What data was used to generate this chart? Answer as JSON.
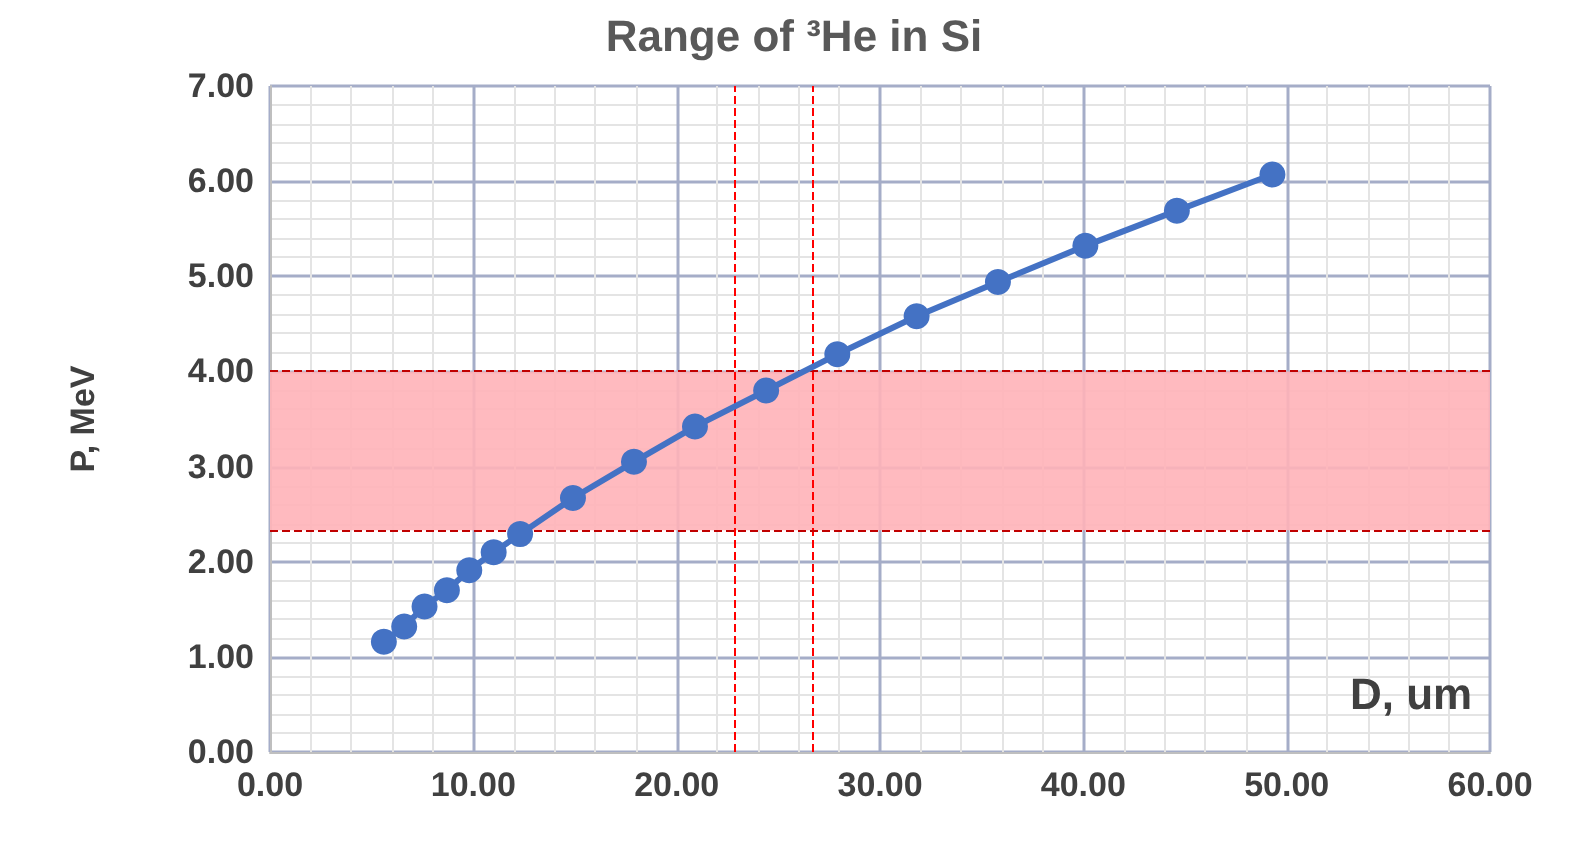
{
  "chart_data": {
    "type": "line",
    "title": "Range of ³He in Si",
    "xlabel": "D, um",
    "ylabel": "P, MeV",
    "x": [
      5.6,
      6.6,
      7.6,
      8.7,
      9.8,
      11.0,
      12.3,
      14.9,
      17.9,
      20.9,
      24.4,
      27.9,
      31.8,
      35.8,
      40.1,
      44.6,
      49.3
    ],
    "series": [
      {
        "color": "#4472c4",
        "values": [
          1.16,
          1.32,
          1.53,
          1.7,
          1.91,
          2.1,
          2.29,
          2.67,
          3.05,
          3.42,
          3.8,
          4.18,
          4.58,
          4.94,
          5.32,
          5.69,
          6.07
        ]
      }
    ],
    "xlim": [
      0,
      60
    ],
    "xticks": [
      {
        "value": 0,
        "label": "0.00"
      },
      {
        "value": 10,
        "label": "10.00"
      },
      {
        "value": 20,
        "label": "20.00"
      },
      {
        "value": 30,
        "label": "30.00"
      },
      {
        "value": 40,
        "label": "40.00"
      },
      {
        "value": 50,
        "label": "50.00"
      },
      {
        "value": 60,
        "label": "60.00"
      }
    ],
    "ylim": [
      0,
      7
    ],
    "yticks": [
      {
        "value": 0,
        "label": "0.00"
      },
      {
        "value": 1,
        "label": "1.00"
      },
      {
        "value": 2,
        "label": "2.00"
      },
      {
        "value": 3,
        "label": "3.00"
      },
      {
        "value": 4,
        "label": "4.00"
      },
      {
        "value": 5,
        "label": "5.00"
      },
      {
        "value": 6,
        "label": "6.00"
      },
      {
        "value": 7,
        "label": "7.00"
      }
    ],
    "ref_lines": [
      {
        "axis": "x",
        "value": 22.8,
        "color": "#ff0000",
        "line_style": "dashed"
      },
      {
        "axis": "x",
        "value": 26.7,
        "color": "#ff0000",
        "line_style": "dashed"
      },
      {
        "axis": "y",
        "value": 4.0,
        "color": "#c00000",
        "line_style": "dashed"
      },
      {
        "axis": "y",
        "value": 2.33,
        "color": "#c00000",
        "line_style": "dashed"
      }
    ],
    "bands": [
      {
        "axis": "y",
        "from": 2.33,
        "to": 4.0,
        "color": "#ffb3b8"
      }
    ],
    "grid": true,
    "marker": "circle",
    "line_style": "solid"
  }
}
